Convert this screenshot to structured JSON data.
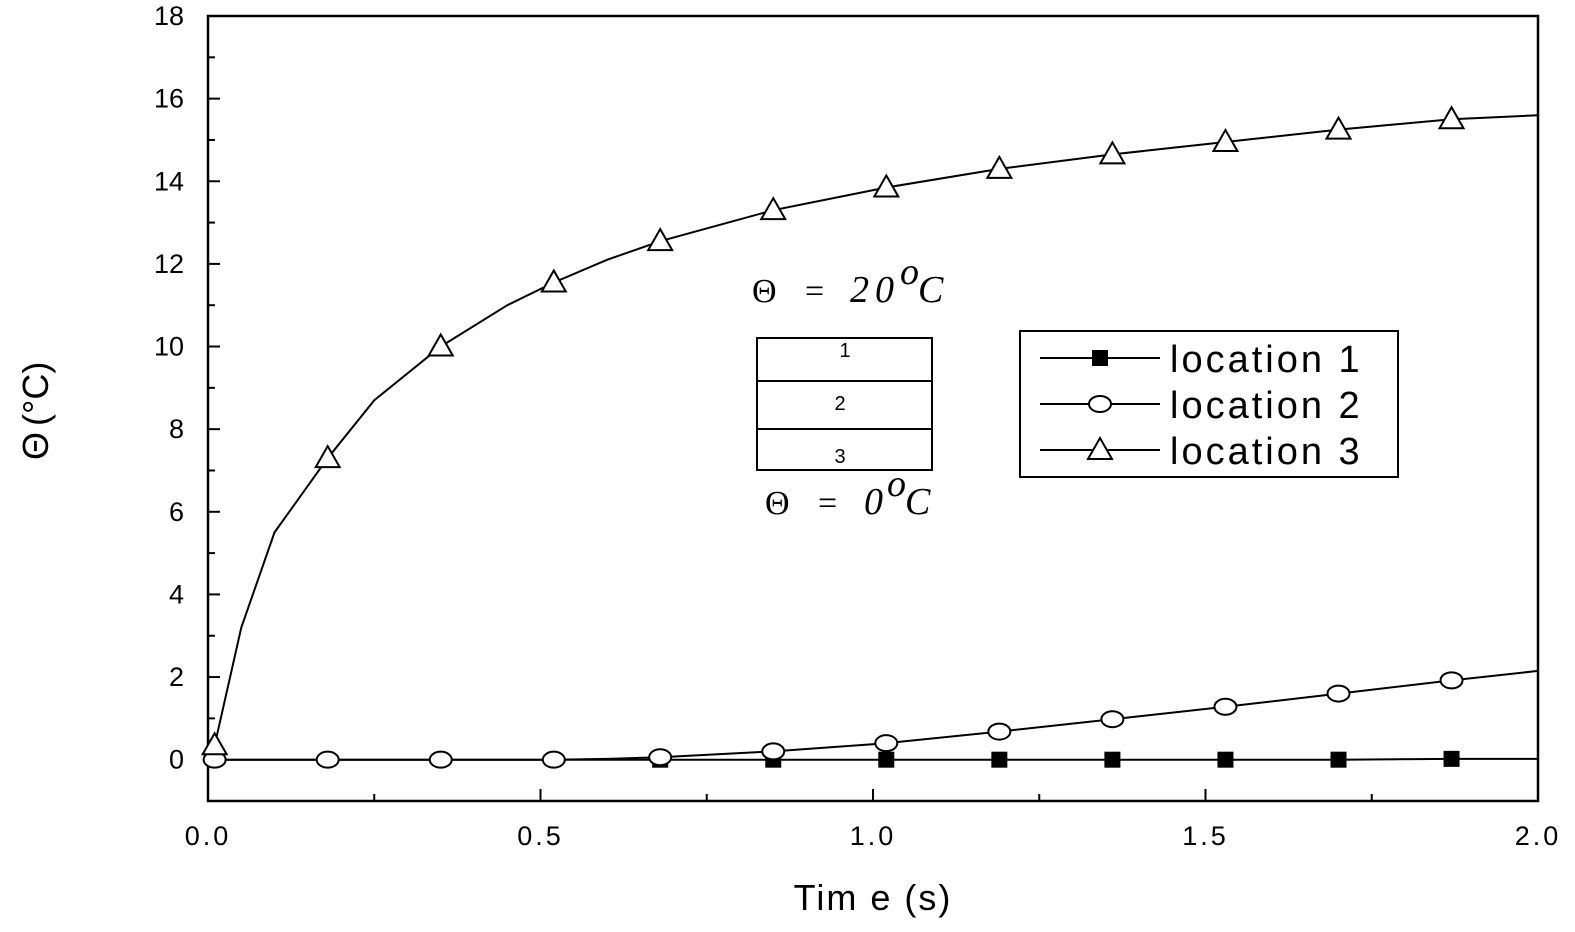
{
  "chart_data": {
    "type": "line",
    "xlabel": "Tim e (s)",
    "ylabel_symbol": "Θ",
    "ylabel_unit": "(°C)",
    "xlim": [
      0.0,
      2.0
    ],
    "ylim": [
      -1,
      18
    ],
    "x_ticks": [
      0.0,
      0.5,
      1.0,
      1.5,
      2.0
    ],
    "x_tick_labels": [
      "0.0",
      "0.5",
      "1.0",
      "1.5",
      "2.0"
    ],
    "y_ticks": [
      0,
      2,
      4,
      6,
      8,
      10,
      12,
      14,
      16,
      18
    ],
    "y_tick_labels": [
      "0",
      "2",
      "4",
      "6",
      "8",
      "10",
      "12",
      "14",
      "16",
      "18"
    ],
    "legend_position": "right",
    "series": [
      {
        "name": "location 1",
        "marker": "filled-square",
        "x": [
          0.01,
          0.68,
          0.85,
          1.02,
          1.19,
          1.36,
          1.53,
          1.7,
          1.87,
          2.0
        ],
        "y": [
          0.0,
          0.0,
          0.0,
          0.0,
          0.0,
          0.0,
          0.0,
          0.0,
          0.02,
          0.02
        ],
        "marker_x": [
          0.68,
          0.85,
          1.02,
          1.19,
          1.36,
          1.53,
          1.7,
          1.87
        ]
      },
      {
        "name": "location 2",
        "marker": "open-circle",
        "x": [
          0.01,
          0.18,
          0.35,
          0.52,
          0.6,
          0.68,
          0.85,
          1.02,
          1.19,
          1.36,
          1.53,
          1.7,
          1.87,
          2.0
        ],
        "y": [
          0.0,
          0.0,
          0.0,
          0.0,
          0.02,
          0.06,
          0.2,
          0.4,
          0.68,
          0.98,
          1.28,
          1.6,
          1.92,
          2.15
        ],
        "marker_x": [
          0.01,
          0.18,
          0.35,
          0.52,
          0.68,
          0.85,
          1.02,
          1.19,
          1.36,
          1.53,
          1.7,
          1.87
        ]
      },
      {
        "name": "location 3",
        "marker": "open-triangle",
        "x": [
          0.01,
          0.05,
          0.1,
          0.18,
          0.25,
          0.35,
          0.45,
          0.52,
          0.6,
          0.68,
          0.85,
          1.02,
          1.19,
          1.36,
          1.53,
          1.7,
          1.87,
          2.0
        ],
        "y": [
          0.35,
          3.2,
          5.5,
          7.3,
          8.7,
          10.0,
          11.0,
          11.55,
          12.1,
          12.55,
          13.3,
          13.85,
          14.3,
          14.65,
          14.95,
          15.25,
          15.5,
          15.6
        ],
        "marker_x": [
          0.01,
          0.18,
          0.35,
          0.52,
          0.68,
          0.85,
          1.02,
          1.19,
          1.36,
          1.53,
          1.7,
          1.87
        ]
      }
    ],
    "annotation": {
      "top_symbol": "Θ",
      "top_eq": "=",
      "top_value": "20",
      "top_unit": "C",
      "bottom_symbol": "Θ",
      "bottom_eq": "=",
      "bottom_value": "0",
      "bottom_unit": "C",
      "degree": "o",
      "layers": [
        "1",
        "2",
        "3"
      ]
    }
  }
}
